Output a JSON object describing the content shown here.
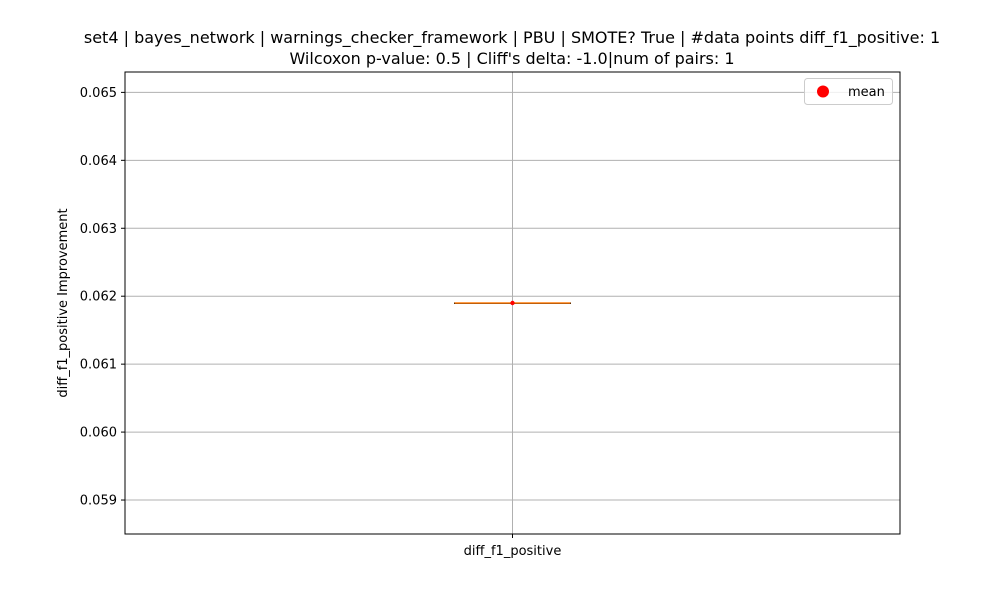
{
  "chart_data": {
    "type": "box",
    "title_line1": "set4 | bayes_network | warnings_checker_framework | PBU | SMOTE? True | #data points diff_f1_positive: 1",
    "title_line2": "Wilcoxon p-value: 0.5 | Cliff's delta: -1.0|num of pairs: 1",
    "xlabel": "",
    "ylabel": "diff_f1_positive Improvement",
    "categories": [
      "diff_f1_positive"
    ],
    "yticks": [
      "0.059",
      "0.060",
      "0.061",
      "0.062",
      "0.063",
      "0.064",
      "0.065"
    ],
    "ylim": [
      0.0585,
      0.0653
    ],
    "boxes": [
      {
        "category": "diff_f1_positive",
        "min": 0.0619,
        "q1": 0.0619,
        "median": 0.0619,
        "q3": 0.0619,
        "max": 0.0619,
        "mean": 0.0619
      }
    ],
    "legend": {
      "label": "mean",
      "position": "top-right"
    },
    "grid": true,
    "colors": {
      "median": "#ff7f0e",
      "mean": "#ff0000",
      "box": "#000000",
      "grid": "#b0b0b0"
    }
  }
}
